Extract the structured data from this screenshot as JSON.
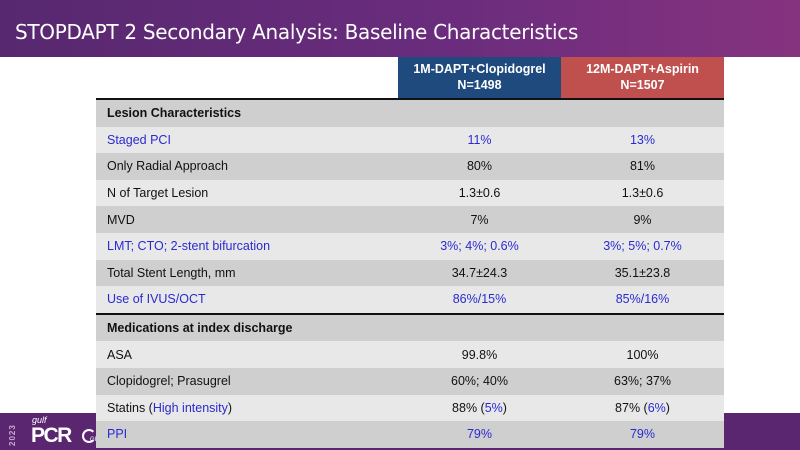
{
  "slide": {
    "title": "STOPDAPT 2 Secondary Analysis: Baseline Characteristics"
  },
  "table": {
    "columns": [
      {
        "name": "1M-DAPT+Clopidogrel",
        "n": "N=1498",
        "color": "#1f4a7e"
      },
      {
        "name": "12M-DAPT+Aspirin",
        "n": "N=1507",
        "color": "#c0504d"
      }
    ],
    "sections": [
      {
        "title": "Lesion Characteristics",
        "rows": [
          {
            "label": "Staged PCI",
            "values": [
              "11%",
              "13%"
            ],
            "highlight": true
          },
          {
            "label": "Only Radial Approach",
            "values": [
              "80%",
              "81%"
            ],
            "highlight": false
          },
          {
            "label": "N of Target Lesion",
            "values": [
              "1.3±0.6",
              "1.3±0.6"
            ],
            "highlight": false
          },
          {
            "label": "MVD",
            "values": [
              "7%",
              "9%"
            ],
            "highlight": false
          },
          {
            "label": "LMT; CTO; 2-stent bifurcation",
            "values": [
              "3%; 4%; 0.6%",
              "3%; 5%; 0.7%"
            ],
            "highlight": true
          },
          {
            "label": "Total Stent Length, mm",
            "values": [
              "34.7±24.3",
              "35.1±23.8"
            ],
            "highlight": false
          },
          {
            "label": "Use of IVUS/OCT",
            "values": [
              "86%/15%",
              "85%/16%"
            ],
            "highlight": true
          }
        ]
      },
      {
        "title": "Medications at index discharge",
        "rows": [
          {
            "label": "ASA",
            "values": [
              "99.8%",
              "100%"
            ],
            "highlight": false
          },
          {
            "label": "Clopidogrel; Prasugrel",
            "values": [
              "60%; 40%",
              "63%; 37%"
            ],
            "highlight": false
          }
        ]
      }
    ],
    "statins_row": {
      "label_main": "Statins (",
      "label_highlight": "High intensity",
      "label_close": ")",
      "values": [
        {
          "main": "88% (",
          "highlight": "5%",
          "close": ")"
        },
        {
          "main": "87% (",
          "highlight": "6%",
          "close": ")"
        }
      ]
    },
    "ppi_row": {
      "label": "PPI",
      "values": [
        "79%",
        "79%"
      ],
      "highlight": true
    }
  },
  "footer": {
    "logo_year": "2023",
    "logo_gulf": "gulf",
    "logo_pcr": "PCR",
    "logo_mark": "GIM"
  },
  "colors": {
    "banner": "#6a2c7d",
    "footer": "#5a2670",
    "highlight_text": "#2a2ad0",
    "row_dark": "#cfcfcf",
    "row_light": "#e8e8e8"
  }
}
